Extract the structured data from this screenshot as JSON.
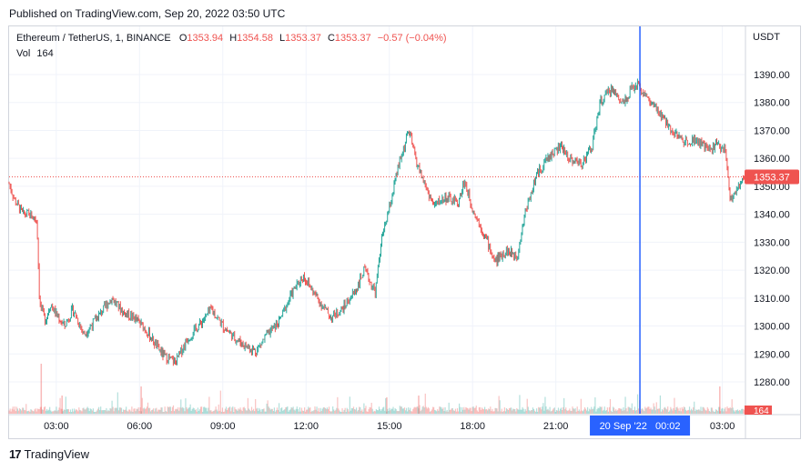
{
  "header": {
    "published": "Published on TradingView.com, Sep 20, 2022 03:50 UTC"
  },
  "legend": {
    "symbol": "Ethereum / TetherUS, 1, BINANCE",
    "open_label": "O",
    "open": "1353.94",
    "high_label": "H",
    "high": "1354.58",
    "low_label": "L",
    "low": "1353.37",
    "close_label": "C",
    "close": "1353.37",
    "change": "−0.57 (−0.04%)",
    "vol_label": "Vol",
    "vol": "164"
  },
  "axis": {
    "currency": "USDT",
    "last_price_tag": "1353.37",
    "volume_tag": "164",
    "crosshair_time": "20 Sep '22   00:02"
  },
  "footer": {
    "brand": "TradingView",
    "logo": "17"
  },
  "colors": {
    "up": "#26a69a",
    "down": "#ef5350",
    "crosshair": "#2962ff",
    "grid": "#f0f3fa"
  },
  "chart_data": {
    "type": "line",
    "title": "Ethereum / TetherUS, 1, BINANCE",
    "ylabel": "USDT",
    "ylim": [
      1270,
      1400
    ],
    "y_ticks": [
      1280,
      1290,
      1300,
      1310,
      1320,
      1330,
      1340,
      1350,
      1360,
      1370,
      1380,
      1390
    ],
    "x_ticks": [
      "03:00",
      "06:00",
      "09:00",
      "12:00",
      "15:00",
      "18:00",
      "21:00",
      "03:00"
    ],
    "x_tick_hours": [
      3,
      6,
      9,
      12,
      15,
      18,
      21,
      27
    ],
    "x_range_hours": [
      1.3,
      27.8
    ],
    "crosshair_hour": 24.03,
    "last_price": 1353.37,
    "series": [
      {
        "name": "Ethereum / TetherUS",
        "x_hours": [
          1.3,
          1.5,
          1.8,
          2.0,
          2.3,
          2.4,
          2.6,
          2.8,
          3.0,
          3.3,
          3.6,
          4.0,
          4.4,
          4.7,
          5.0,
          5.4,
          5.8,
          6.2,
          6.6,
          6.9,
          7.3,
          7.7,
          8.2,
          8.6,
          9.0,
          9.4,
          9.8,
          10.2,
          10.6,
          11.0,
          11.5,
          11.9,
          12.4,
          12.9,
          13.3,
          13.8,
          14.1,
          14.5,
          14.7,
          15.0,
          15.3,
          15.7,
          16.0,
          16.3,
          16.6,
          17.0,
          17.5,
          17.7,
          18.0,
          18.5,
          18.8,
          19.2,
          19.6,
          19.9,
          20.3,
          20.7,
          21.0,
          21.2,
          21.5,
          21.9,
          22.3,
          22.6,
          23.0,
          23.4,
          23.9,
          24.2,
          24.4,
          24.8,
          25.2,
          25.6,
          26.0,
          26.5,
          26.8,
          27.1,
          27.3,
          27.6,
          27.8
        ],
        "values": [
          1351,
          1345,
          1340,
          1340,
          1338,
          1308,
          1302,
          1308,
          1304,
          1300,
          1306,
          1297,
          1302,
          1306,
          1310,
          1305,
          1303,
          1299,
          1293,
          1289,
          1287,
          1295,
          1301,
          1306,
          1300,
          1296,
          1293,
          1291,
          1297,
          1301,
          1312,
          1318,
          1310,
          1303,
          1306,
          1313,
          1320,
          1312,
          1330,
          1342,
          1356,
          1370,
          1358,
          1350,
          1343,
          1346,
          1344,
          1352,
          1342,
          1331,
          1323,
          1327,
          1325,
          1341,
          1354,
          1360,
          1363,
          1364,
          1360,
          1358,
          1364,
          1380,
          1385,
          1380,
          1387,
          1383,
          1380,
          1375,
          1370,
          1366,
          1367,
          1363,
          1365,
          1363,
          1345,
          1350,
          1353.37
        ]
      }
    ],
    "volume": {
      "name": "Vol",
      "last": 164
    }
  }
}
